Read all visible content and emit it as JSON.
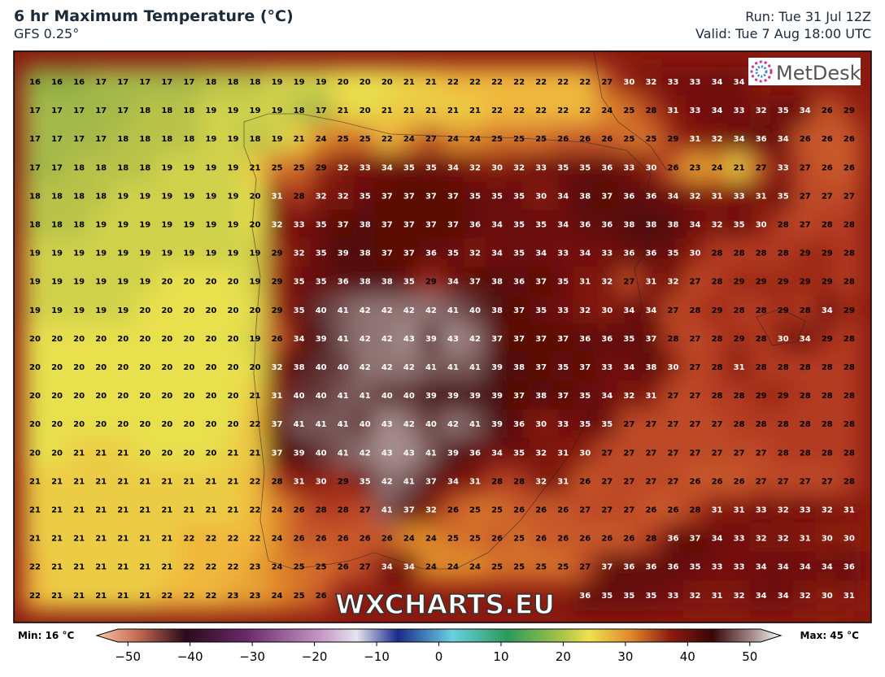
{
  "header": {
    "title": "6 hr Maximum Temperature (°C)",
    "subtitle": "GFS 0.25°",
    "run": "Run: Tue 31 Jul 12Z",
    "valid": "Valid: Tue 7 Aug 18:00 UTC"
  },
  "logo": "MetDesk",
  "watermark": "WXCHARTS.EU",
  "grid": {
    "rows": [
      [
        16,
        16,
        16,
        17,
        17,
        17,
        17,
        17,
        18,
        18,
        18,
        19,
        19,
        19,
        20,
        20,
        20,
        21,
        21,
        22,
        22,
        22,
        22,
        22,
        22,
        22,
        27,
        30,
        32,
        33,
        33,
        34,
        34
      ],
      [
        17,
        17,
        17,
        17,
        17,
        18,
        18,
        18,
        19,
        19,
        19,
        19,
        18,
        17,
        21,
        20,
        21,
        21,
        21,
        21,
        21,
        22,
        22,
        22,
        22,
        22,
        24,
        25,
        28,
        31,
        33,
        34,
        33,
        32,
        35,
        34,
        26,
        29
      ],
      [
        17,
        17,
        17,
        17,
        18,
        18,
        18,
        18,
        19,
        19,
        18,
        19,
        21,
        24,
        25,
        25,
        22,
        24,
        27,
        24,
        24,
        25,
        25,
        25,
        26,
        26,
        26,
        25,
        25,
        29,
        31,
        32,
        34,
        36,
        34,
        26,
        26,
        26
      ],
      [
        17,
        17,
        18,
        18,
        18,
        18,
        19,
        19,
        19,
        19,
        21,
        25,
        25,
        29,
        32,
        33,
        34,
        35,
        35,
        34,
        32,
        30,
        32,
        33,
        35,
        35,
        36,
        33,
        30,
        26,
        23,
        24,
        21,
        27,
        33,
        27,
        26,
        26
      ],
      [
        18,
        18,
        18,
        18,
        19,
        19,
        19,
        19,
        19,
        19,
        20,
        31,
        28,
        32,
        32,
        35,
        37,
        37,
        37,
        37,
        35,
        35,
        35,
        30,
        34,
        38,
        37,
        36,
        36,
        34,
        32,
        31,
        33,
        31,
        35,
        27,
        27,
        27
      ],
      [
        18,
        18,
        18,
        19,
        19,
        19,
        19,
        19,
        19,
        19,
        20,
        32,
        33,
        35,
        37,
        38,
        37,
        37,
        37,
        37,
        36,
        34,
        35,
        35,
        34,
        36,
        36,
        38,
        38,
        38,
        34,
        32,
        35,
        30,
        28,
        27,
        28,
        28
      ],
      [
        19,
        19,
        19,
        19,
        19,
        19,
        19,
        19,
        19,
        19,
        19,
        29,
        32,
        35,
        39,
        38,
        37,
        37,
        36,
        35,
        32,
        34,
        35,
        34,
        33,
        34,
        33,
        36,
        36,
        35,
        30,
        28,
        28,
        28,
        28,
        29,
        29,
        28
      ],
      [
        19,
        19,
        19,
        19,
        19,
        19,
        20,
        20,
        20,
        20,
        19,
        29,
        35,
        35,
        36,
        38,
        38,
        35,
        29,
        34,
        37,
        38,
        36,
        37,
        35,
        31,
        32,
        27,
        31,
        32,
        27,
        28,
        29,
        29,
        29,
        29,
        29,
        28
      ],
      [
        19,
        19,
        19,
        19,
        19,
        20,
        20,
        20,
        20,
        20,
        20,
        29,
        35,
        40,
        41,
        42,
        42,
        42,
        42,
        41,
        40,
        38,
        37,
        35,
        33,
        32,
        30,
        34,
        34,
        27,
        28,
        29,
        28,
        28,
        29,
        28,
        34,
        29
      ],
      [
        20,
        20,
        20,
        20,
        20,
        20,
        20,
        20,
        20,
        20,
        19,
        26,
        34,
        39,
        41,
        42,
        42,
        43,
        39,
        43,
        42,
        37,
        37,
        37,
        37,
        36,
        36,
        35,
        37,
        28,
        27,
        28,
        29,
        28,
        30,
        34,
        29,
        28
      ],
      [
        20,
        20,
        20,
        20,
        20,
        20,
        20,
        20,
        20,
        20,
        20,
        32,
        38,
        40,
        40,
        42,
        42,
        42,
        41,
        41,
        41,
        39,
        38,
        37,
        35,
        37,
        33,
        34,
        38,
        30,
        27,
        28,
        31,
        28,
        28,
        28,
        28,
        28
      ],
      [
        20,
        20,
        20,
        20,
        20,
        20,
        20,
        20,
        20,
        20,
        21,
        31,
        40,
        40,
        41,
        41,
        40,
        40,
        39,
        39,
        39,
        39,
        37,
        38,
        37,
        35,
        34,
        32,
        31,
        27,
        27,
        28,
        28,
        29,
        29,
        28,
        28,
        28
      ],
      [
        20,
        20,
        20,
        20,
        20,
        20,
        20,
        20,
        20,
        20,
        22,
        37,
        41,
        41,
        41,
        40,
        43,
        42,
        40,
        42,
        41,
        39,
        36,
        30,
        33,
        35,
        35,
        27,
        27,
        27,
        27,
        27,
        28,
        28,
        28,
        28,
        28,
        28
      ],
      [
        20,
        20,
        21,
        21,
        21,
        20,
        20,
        20,
        20,
        21,
        21,
        37,
        39,
        40,
        41,
        42,
        43,
        43,
        41,
        39,
        36,
        34,
        35,
        32,
        31,
        30,
        27,
        27,
        27,
        27,
        27,
        27,
        27,
        27,
        28,
        28,
        28,
        28
      ],
      [
        21,
        21,
        21,
        21,
        21,
        21,
        21,
        21,
        21,
        21,
        22,
        28,
        31,
        30,
        29,
        35,
        42,
        41,
        37,
        34,
        31,
        28,
        28,
        32,
        31,
        26,
        27,
        27,
        27,
        27,
        26,
        26,
        26,
        27,
        27,
        27,
        27,
        28
      ],
      [
        21,
        21,
        21,
        21,
        21,
        21,
        21,
        21,
        21,
        21,
        22,
        24,
        26,
        28,
        28,
        27,
        41,
        37,
        32,
        26,
        25,
        25,
        26,
        26,
        26,
        27,
        27,
        27,
        26,
        26,
        28,
        31,
        31,
        33,
        32,
        33,
        32,
        31
      ],
      [
        21,
        21,
        21,
        21,
        21,
        21,
        21,
        22,
        22,
        22,
        22,
        24,
        26,
        26,
        26,
        26,
        26,
        24,
        24,
        25,
        25,
        26,
        25,
        26,
        26,
        26,
        26,
        26,
        28,
        36,
        37,
        34,
        33,
        32,
        32,
        31,
        30,
        30
      ],
      [
        22,
        21,
        21,
        21,
        21,
        21,
        21,
        22,
        22,
        22,
        23,
        24,
        25,
        25,
        26,
        27,
        34,
        34,
        24,
        24,
        24,
        25,
        25,
        25,
        25,
        27,
        37,
        36,
        36,
        36,
        35,
        33,
        33,
        34,
        34,
        34,
        34,
        36
      ],
      [
        22,
        21,
        21,
        21,
        21,
        21,
        22,
        22,
        22,
        23,
        23,
        24,
        25,
        26,
        null,
        null,
        null,
        null,
        null,
        null,
        null,
        null,
        null,
        null,
        null,
        36,
        35,
        35,
        35,
        33,
        32,
        31,
        32,
        34,
        34,
        32,
        30,
        31
      ]
    ]
  },
  "colorbar": {
    "min_label": "Min: 16 °C",
    "max_label": "Max: 45 °C",
    "lim": [
      -55,
      55
    ],
    "ticks": [
      {
        "value": -50,
        "label": "−50"
      },
      {
        "value": -40,
        "label": "−40"
      },
      {
        "value": -30,
        "label": "−30"
      },
      {
        "value": -20,
        "label": "−20"
      },
      {
        "value": -10,
        "label": "−10"
      },
      0,
      10,
      20,
      30,
      40,
      50
    ]
  }
}
